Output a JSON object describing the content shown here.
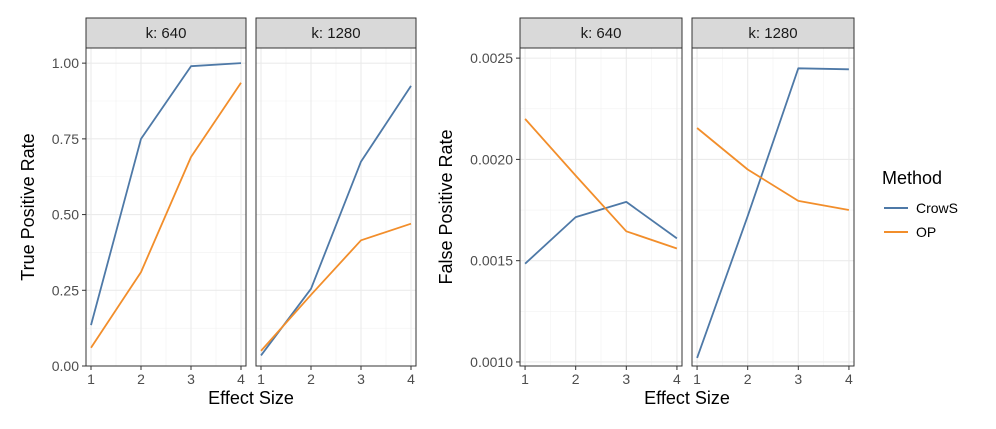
{
  "figure": {
    "legend": {
      "title": "Method",
      "entries": [
        {
          "name": "CrowS",
          "color": "#4e79a7"
        },
        {
          "name": "OP",
          "color": "#f28e2b"
        }
      ]
    }
  },
  "chart_data": [
    {
      "type": "line",
      "title": "",
      "xlabel": "Effect Size",
      "ylabel": "True Positive Rate",
      "x": [
        1,
        2,
        3,
        4
      ],
      "xlim": [
        0.9,
        4.1
      ],
      "ylim": [
        0,
        1.05
      ],
      "yticks": [
        0,
        0.25,
        0.5,
        0.75,
        1.0
      ],
      "ytick_labels": [
        "0.00",
        "0.25",
        "0.50",
        "0.75",
        "1.00"
      ],
      "xtick_labels": [
        "1",
        "2",
        "3",
        "4"
      ],
      "grid": true,
      "facets": [
        {
          "label": "k: 640",
          "series": [
            {
              "name": "CrowS",
              "values": [
                0.135,
                0.75,
                0.99,
                1.0
              ]
            },
            {
              "name": "OP",
              "values": [
                0.06,
                0.31,
                0.69,
                0.935
              ]
            }
          ]
        },
        {
          "label": "k: 1280",
          "series": [
            {
              "name": "CrowS",
              "values": [
                0.035,
                0.255,
                0.675,
                0.925
              ]
            },
            {
              "name": "OP",
              "values": [
                0.05,
                0.235,
                0.415,
                0.47
              ]
            }
          ]
        }
      ]
    },
    {
      "type": "line",
      "title": "",
      "xlabel": "Effect Size",
      "ylabel": "False Positive Rate",
      "x": [
        1,
        2,
        3,
        4
      ],
      "xlim": [
        0.9,
        4.1
      ],
      "ylim": [
        0.00098,
        0.00255
      ],
      "yticks": [
        0.001,
        0.0015,
        0.002,
        0.0025
      ],
      "ytick_labels": [
        "0.0010",
        "0.0015",
        "0.0020",
        "0.0025"
      ],
      "xtick_labels": [
        "1",
        "2",
        "3",
        "4"
      ],
      "grid": true,
      "facets": [
        {
          "label": "k: 640",
          "series": [
            {
              "name": "CrowS",
              "values": [
                0.001485,
                0.001715,
                0.00179,
                0.00161
              ]
            },
            {
              "name": "OP",
              "values": [
                0.0022,
                0.00192,
                0.001645,
                0.00156
              ]
            }
          ]
        },
        {
          "label": "k: 1280",
          "series": [
            {
              "name": "CrowS",
              "values": [
                0.00102,
                0.00172,
                0.00245,
                0.002445
              ]
            },
            {
              "name": "OP",
              "values": [
                0.002155,
                0.00195,
                0.001795,
                0.00175
              ]
            }
          ]
        }
      ]
    }
  ]
}
